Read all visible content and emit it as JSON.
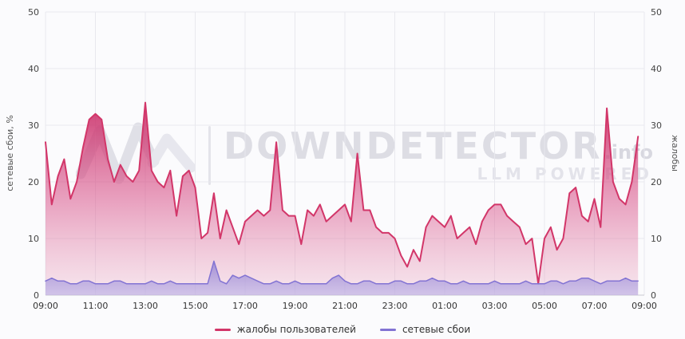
{
  "watermark": {
    "brand": "DOWNDETECTOR",
    "tld": ".info",
    "subtitle": "LLM POWERED"
  },
  "axes": {
    "left_title": "сетевые сбои, %",
    "right_title": "жалобы"
  },
  "legend": [
    {
      "label": "жалобы пользователей",
      "color": "#d23669"
    },
    {
      "label": "сетевые сбои",
      "color": "#8273d3"
    }
  ],
  "chart_data": {
    "type": "area",
    "title": "",
    "xlabel": "",
    "ylabel_left": "сетевые сбои, %",
    "ylabel_right": "жалобы",
    "ylim": [
      0,
      50
    ],
    "y_ticks": [
      0,
      10,
      20,
      30,
      40,
      50
    ],
    "x_tick_labels": [
      "09:00",
      "11:00",
      "13:00",
      "15:00",
      "17:00",
      "19:00",
      "21:00",
      "23:00",
      "01:00",
      "03:00",
      "05:00",
      "07:00",
      "09:00"
    ],
    "hours": 24,
    "points_per_hour": 4,
    "grid": true,
    "legend_position": "bottom",
    "series": [
      {
        "name": "жалобы пользователей",
        "color": "#d23669",
        "values": [
          27,
          16,
          21,
          24,
          17,
          20,
          26,
          31,
          32,
          31,
          24,
          20,
          23,
          21,
          20,
          22,
          34,
          22,
          20,
          19,
          22,
          14,
          21,
          22,
          19,
          10,
          11,
          18,
          10,
          15,
          12,
          9,
          13,
          14,
          15,
          14,
          15,
          27,
          15,
          14,
          14,
          9,
          15,
          14,
          16,
          13,
          14,
          15,
          16,
          13,
          25,
          15,
          15,
          12,
          11,
          11,
          10,
          7,
          5,
          8,
          6,
          12,
          14,
          13,
          12,
          14,
          10,
          11,
          12,
          9,
          13,
          15,
          16,
          16,
          14,
          13,
          12,
          9,
          10,
          2,
          10,
          12,
          8,
          10,
          18,
          19,
          14,
          13,
          17,
          12,
          33,
          20,
          17,
          16,
          20,
          28
        ]
      },
      {
        "name": "сетевые сбои",
        "color": "#8273d3",
        "values": [
          2.5,
          3,
          2.5,
          2.5,
          2,
          2,
          2.5,
          2.5,
          2,
          2,
          2,
          2.5,
          2.5,
          2,
          2,
          2,
          2,
          2.5,
          2,
          2,
          2.5,
          2,
          2,
          2,
          2,
          2,
          2,
          6,
          2.5,
          2,
          3.5,
          3,
          3.5,
          3,
          2.5,
          2,
          2,
          2.5,
          2,
          2,
          2.5,
          2,
          2,
          2,
          2,
          2,
          3,
          3.5,
          2.5,
          2,
          2,
          2.5,
          2.5,
          2,
          2,
          2,
          2.5,
          2.5,
          2,
          2,
          2.5,
          2.5,
          3,
          2.5,
          2.5,
          2,
          2,
          2.5,
          2,
          2,
          2,
          2,
          2.5,
          2,
          2,
          2,
          2,
          2.5,
          2,
          2,
          2,
          2.5,
          2.5,
          2,
          2.5,
          2.5,
          3,
          3,
          2.5,
          2,
          2.5,
          2.5,
          2.5,
          3,
          2.5,
          2.5
        ]
      }
    ]
  }
}
